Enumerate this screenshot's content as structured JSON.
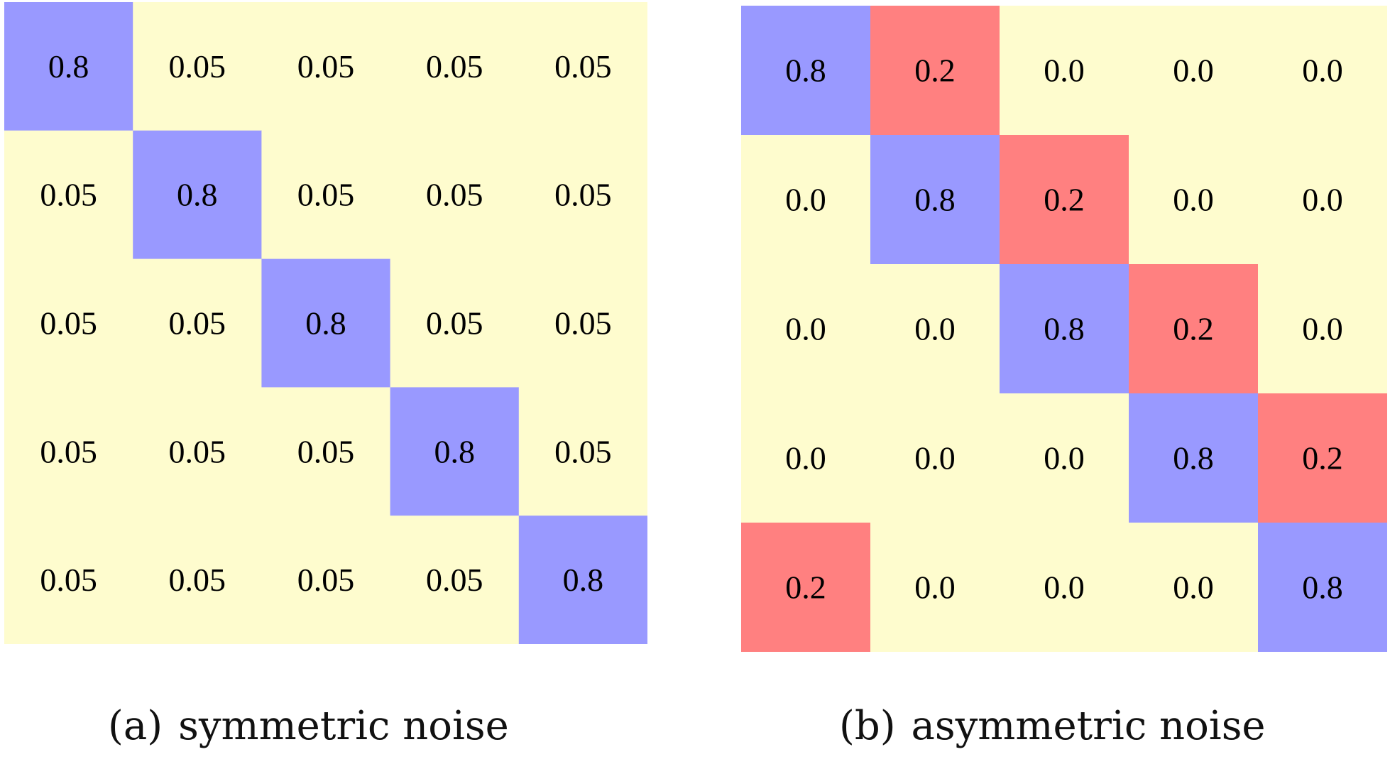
{
  "colors": {
    "background": "#fefcce",
    "diagonal": "#9999ff",
    "flip": "#ff8080",
    "text": "#000000"
  },
  "chart_data": [
    {
      "type": "heatmap",
      "caption_label": "(a)",
      "caption_text": "symmetric noise",
      "rows": 5,
      "cols": 5,
      "values": [
        [
          "0.8",
          "0.05",
          "0.05",
          "0.05",
          "0.05"
        ],
        [
          "0.05",
          "0.8",
          "0.05",
          "0.05",
          "0.05"
        ],
        [
          "0.05",
          "0.05",
          "0.8",
          "0.05",
          "0.05"
        ],
        [
          "0.05",
          "0.05",
          "0.05",
          "0.8",
          "0.05"
        ],
        [
          "0.05",
          "0.05",
          "0.05",
          "0.05",
          "0.8"
        ]
      ],
      "cell_kind": [
        [
          "diagonal",
          "background",
          "background",
          "background",
          "background"
        ],
        [
          "background",
          "diagonal",
          "background",
          "background",
          "background"
        ],
        [
          "background",
          "background",
          "diagonal",
          "background",
          "background"
        ],
        [
          "background",
          "background",
          "background",
          "diagonal",
          "background"
        ],
        [
          "background",
          "background",
          "background",
          "background",
          "diagonal"
        ]
      ]
    },
    {
      "type": "heatmap",
      "caption_label": "(b)",
      "caption_text": "asymmetric noise",
      "rows": 5,
      "cols": 5,
      "values": [
        [
          "0.8",
          "0.2",
          "0.0",
          "0.0",
          "0.0"
        ],
        [
          "0.0",
          "0.8",
          "0.2",
          "0.0",
          "0.0"
        ],
        [
          "0.0",
          "0.0",
          "0.8",
          "0.2",
          "0.0"
        ],
        [
          "0.0",
          "0.0",
          "0.0",
          "0.8",
          "0.2"
        ],
        [
          "0.2",
          "0.0",
          "0.0",
          "0.0",
          "0.8"
        ]
      ],
      "cell_kind": [
        [
          "diagonal",
          "flip",
          "background",
          "background",
          "background"
        ],
        [
          "background",
          "diagonal",
          "flip",
          "background",
          "background"
        ],
        [
          "background",
          "background",
          "diagonal",
          "flip",
          "background"
        ],
        [
          "background",
          "background",
          "background",
          "diagonal",
          "flip"
        ],
        [
          "flip",
          "background",
          "background",
          "background",
          "diagonal"
        ]
      ]
    }
  ]
}
